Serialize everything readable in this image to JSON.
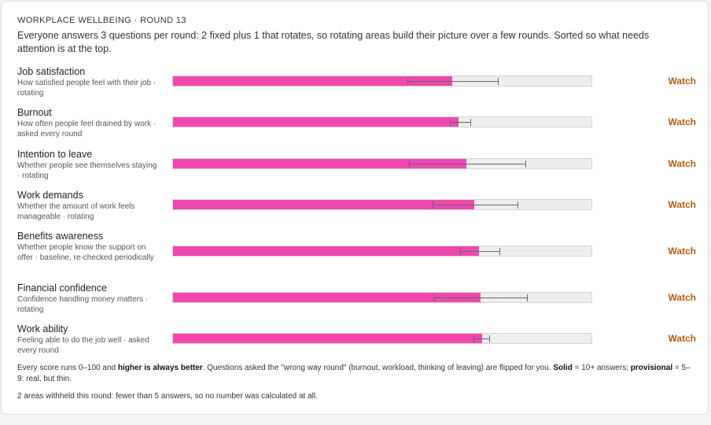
{
  "header": {
    "kicker": "WORKPLACE WELLBEING · ROUND 13",
    "intro": "Everyone answers 3 questions per round: 2 fixed plus 1 that rotates, so rotating areas build their picture over a few rounds. Sorted so what needs attention is at the top."
  },
  "colors": {
    "bar": "#f048b0",
    "track": "#eeeeee",
    "status": "#b35c0c"
  },
  "rows": [
    {
      "title": "Job satisfaction",
      "desc": "How satisfied people feel with their job · rotating",
      "score": 66.5,
      "low": 55.8,
      "high": 77.3,
      "status": "Watch"
    },
    {
      "title": "Burnout",
      "desc": "How often people feel drained by work · asked every round",
      "score": 68.0,
      "low": 65.9,
      "high": 70.8,
      "status": "Watch"
    },
    {
      "title": "Intention to leave",
      "desc": "Whether people see themselves staying · rotating",
      "score": 69.8,
      "low": 56.2,
      "high": 83.9,
      "status": "Watch"
    },
    {
      "title": "Work demands",
      "desc": "Whether the amount of work feels manageable · rotating",
      "score": 71.7,
      "low": 61.8,
      "high": 82.0,
      "status": "Watch"
    },
    {
      "title": "Benefits awareness",
      "desc": "Whether people know the support on offer · baseline, re-checked periodically",
      "score": 72.8,
      "low": 68.4,
      "high": 77.7,
      "status": "Watch"
    },
    {
      "title": "Financial confidence",
      "desc": "Confidence handling money matters · rotating",
      "score": 73.2,
      "low": 62.2,
      "high": 84.3,
      "status": "Watch"
    },
    {
      "title": "Work ability",
      "desc": "Feeling able to do the job well · asked every round",
      "score": 73.6,
      "low": 71.5,
      "high": 75.3,
      "status": "Watch"
    }
  ],
  "footer": {
    "note_1": "Every score runs 0–100 and ",
    "note_bold_1": "higher is always better",
    "note_2": ". Questions asked the \"wrong way round\" (burnout, workload, thinking of leaving) are flipped for you. ",
    "note_bold_2": "Solid",
    "note_3": " = 10+ answers; ",
    "note_bold_3": "provisional",
    "note_4": " = 5–9: real, but thin.",
    "withheld": "2 areas withheld this round: fewer than 5 answers, so no number was calculated at all."
  }
}
